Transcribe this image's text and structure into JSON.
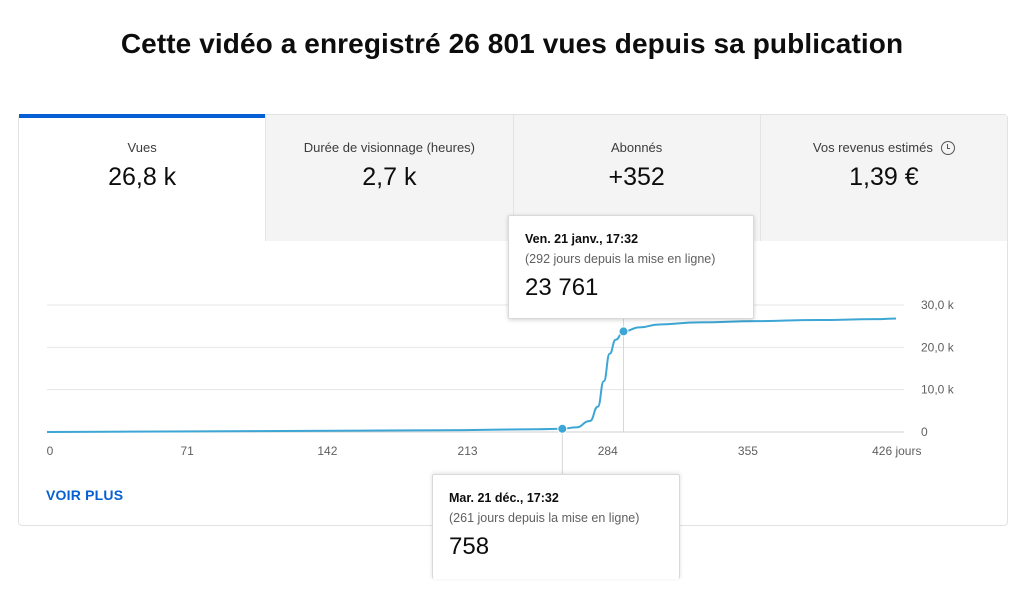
{
  "headline": "Cette vidéo a enregistré 26 801 vues depuis sa publication",
  "tabs": [
    {
      "label": "Vues",
      "value": "26,8 k"
    },
    {
      "label": "Durée de visionnage (heures)",
      "value": "2,7 k"
    },
    {
      "label": "Abonnés",
      "value": "+352"
    },
    {
      "label": "Vos revenus estimés",
      "value": "1,39 €"
    }
  ],
  "voir_plus": "VOIR PLUS",
  "tooltips": {
    "top": {
      "date": "Ven. 21 janv., 17:32",
      "sub": "(292 jours depuis la mise en ligne)",
      "value": "23 761"
    },
    "bottom": {
      "date": "Mar. 21 déc., 17:32",
      "sub": "(261 jours depuis la mise en ligne)",
      "value": "758"
    }
  },
  "colors": {
    "line": "#3ea6d4",
    "accent": "#065fd4",
    "grid": "#e5e5e5"
  },
  "chart_data": {
    "type": "line",
    "series": [
      {
        "values": [
          [
            0,
            0
          ],
          [
            60,
            120
          ],
          [
            120,
            250
          ],
          [
            200,
            420
          ],
          [
            248,
            640
          ],
          [
            261,
            758
          ],
          [
            268,
            1100
          ],
          [
            275,
            2600
          ],
          [
            279,
            6000
          ],
          [
            282,
            12000
          ],
          [
            285,
            18500
          ],
          [
            288,
            21800
          ],
          [
            292,
            23761
          ],
          [
            300,
            24700
          ],
          [
            310,
            25400
          ],
          [
            330,
            25900
          ],
          [
            360,
            26200
          ],
          [
            390,
            26450
          ],
          [
            420,
            26650
          ],
          [
            430,
            26801
          ]
        ]
      }
    ],
    "x_ticks": [
      "0",
      "71",
      "142",
      "213",
      "284",
      "355",
      "426 jours"
    ],
    "x_tick_values": [
      0,
      71,
      142,
      213,
      284,
      355,
      426
    ],
    "y_ticks": [
      "0",
      "10,0 k",
      "20,0 k",
      "30,0 k"
    ],
    "y_tick_values": [
      0,
      10000,
      20000,
      30000
    ],
    "xlim": [
      0,
      430
    ],
    "ylim": [
      0,
      30000
    ],
    "highlight_points": [
      [
        261,
        758
      ],
      [
        292,
        23761
      ]
    ],
    "grid": true
  }
}
